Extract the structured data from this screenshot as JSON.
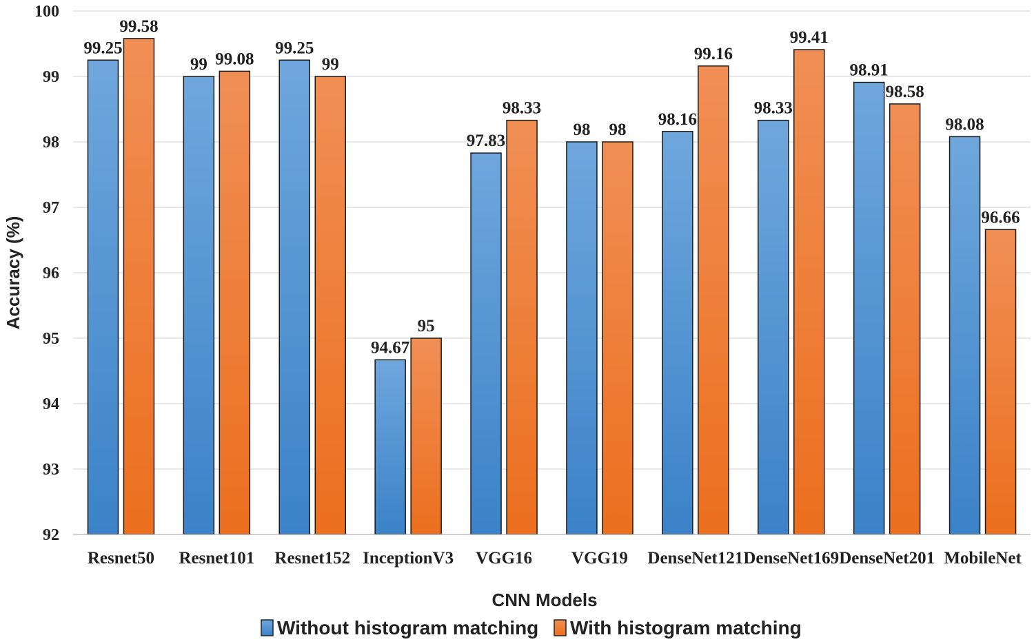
{
  "chart_data": {
    "type": "bar",
    "title": "",
    "xlabel": "CNN Models",
    "ylabel": "Accuracy (%)",
    "ylim": [
      92,
      100
    ],
    "yticks": [
      92,
      93,
      94,
      95,
      96,
      97,
      98,
      99,
      100
    ],
    "grid": true,
    "legend_position": "bottom",
    "categories": [
      "Resnet50",
      "Resnet101",
      "Resnet152",
      "InceptionV3",
      "VGG16",
      "VGG19",
      "DenseNet121",
      "DenseNet169",
      "DenseNet201",
      "MobileNet"
    ],
    "series": [
      {
        "name": "Without histogram matching",
        "color": "#4a8fd0",
        "values": [
          99.25,
          99,
          99.25,
          94.67,
          97.83,
          98,
          98.16,
          98.33,
          98.91,
          98.08
        ]
      },
      {
        "name": "With histogram matching",
        "color": "#ee7a2f",
        "values": [
          99.58,
          99.08,
          99,
          95,
          98.33,
          98,
          99.16,
          99.41,
          98.58,
          96.66
        ]
      }
    ]
  }
}
